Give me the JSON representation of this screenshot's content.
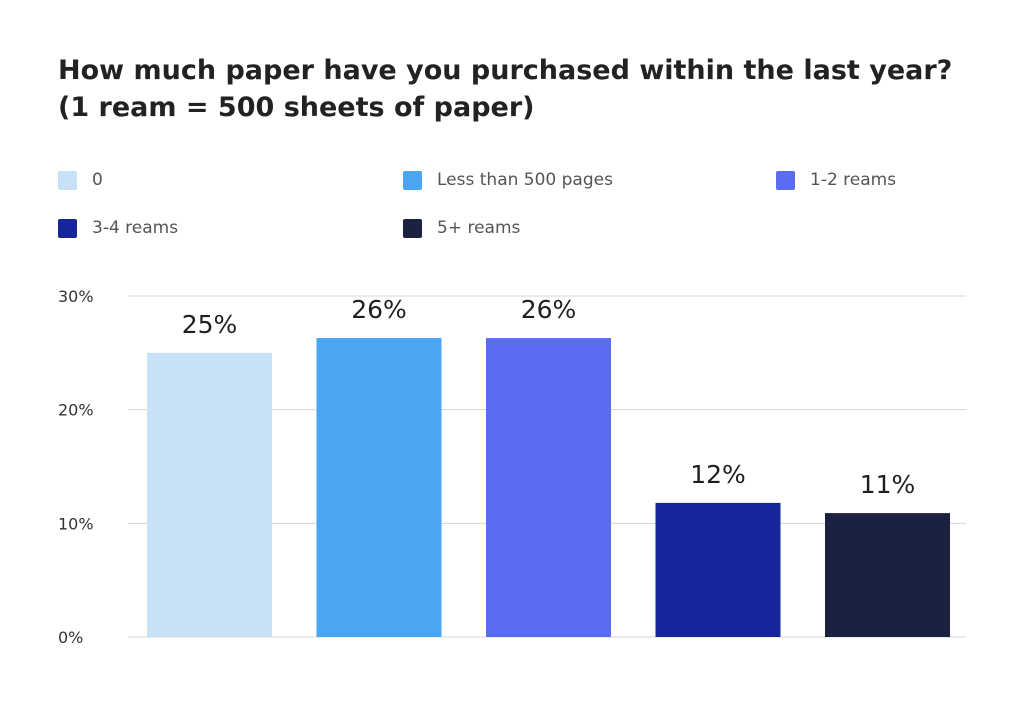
{
  "chart_data": {
    "type": "bar",
    "title": "How much paper have you purchased within the last year?",
    "subtitle": "(1 ream = 500 sheets of paper)",
    "xlabel": "",
    "ylabel": "",
    "ylim": [
      0,
      30
    ],
    "yticks": [
      0,
      10,
      20,
      30
    ],
    "ytick_labels": [
      "0%",
      "10%",
      "20%",
      "30%"
    ],
    "grid": true,
    "legend_position": "top",
    "categories": [
      "0",
      "Less than 500 pages",
      "1-2 reams",
      "3-4 reams",
      "5+ reams"
    ],
    "values": [
      25,
      26.3,
      26.3,
      11.8,
      10.9
    ],
    "data_labels": [
      "25%",
      "26%",
      "26%",
      "12%",
      "11%"
    ],
    "colors": [
      "#c7e1f7",
      "#4aa6f2",
      "#5b6cf3",
      "#15259c",
      "#1b2140"
    ]
  }
}
